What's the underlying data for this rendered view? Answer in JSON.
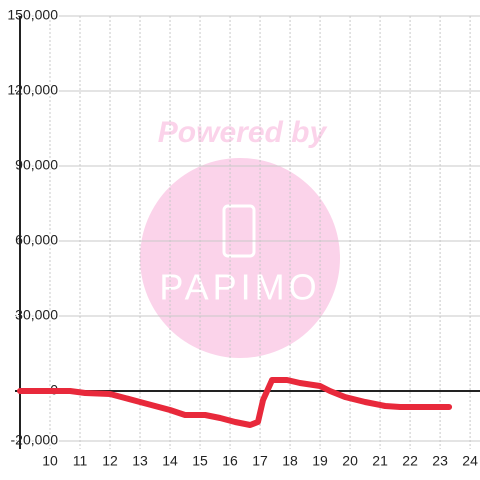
{
  "chart_data": {
    "type": "line",
    "watermark": {
      "title": "Powered by",
      "logo_text": "PAPIMO"
    },
    "x": [
      9,
      10.67,
      11.17,
      12,
      12.5,
      13,
      13.5,
      14,
      14.5,
      15.17,
      15.67,
      16.17,
      16.67,
      16.93,
      17.1,
      17.4,
      17.9,
      18.33,
      19,
      19.33,
      19.83,
      20.5,
      21.17,
      21.67,
      23.3
    ],
    "series": [
      {
        "color": "#e8293b",
        "values": [
          0,
          0,
          -800,
          -1200,
          -2800,
          -4400,
          -6000,
          -7600,
          -9600,
          -9600,
          -10800,
          -12400,
          -13600,
          -12400,
          -3600,
          4400,
          4400,
          3200,
          2000,
          0,
          -2400,
          -4400,
          -6000,
          -6400,
          -6400
        ]
      }
    ],
    "xlim": [
      9,
      24.33
    ],
    "xticks": [
      10,
      11,
      12,
      13,
      14,
      15,
      16,
      17,
      18,
      19,
      20,
      21,
      22,
      23,
      24
    ],
    "ylim": [
      -20000,
      150000
    ],
    "yticks": [
      {
        "value": -20000,
        "label": "-20,000"
      },
      0,
      {
        "value": 30000,
        "label": "30,000"
      },
      {
        "value": 60000,
        "label": "60,000"
      },
      {
        "value": 90000,
        "label": "90,000"
      },
      {
        "value": 120000,
        "label": "120,000"
      },
      {
        "value": 150000,
        "label": "150,000"
      }
    ],
    "grid": true
  }
}
